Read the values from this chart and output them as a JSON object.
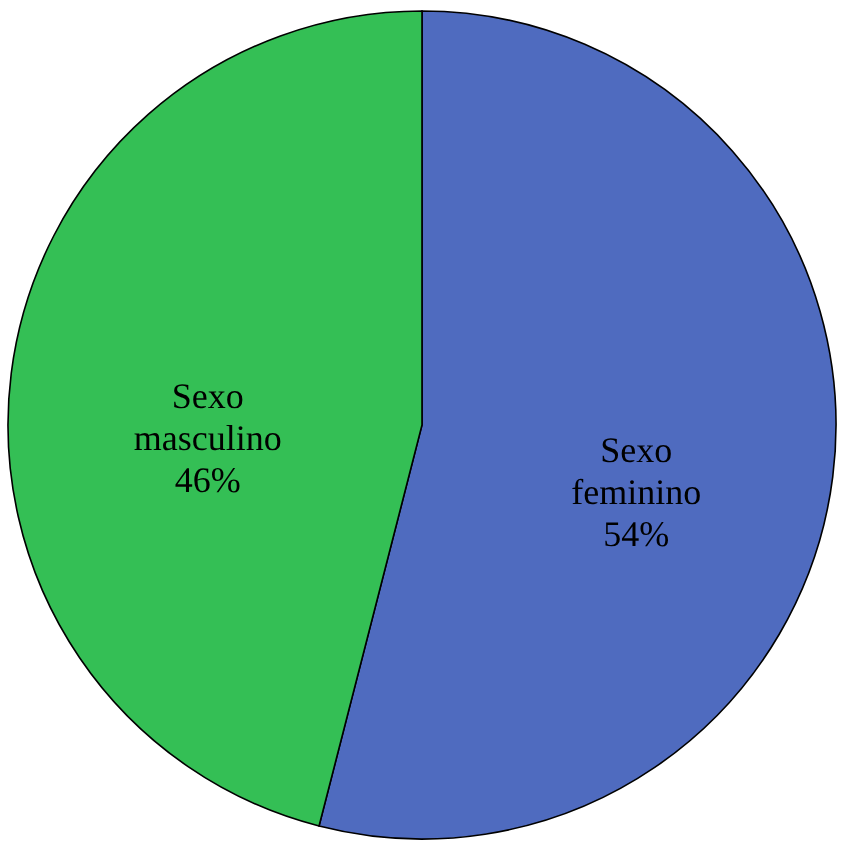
{
  "chart_data": {
    "type": "pie",
    "categories": [
      "Sexo feminino",
      "Sexo masculino"
    ],
    "values": [
      54,
      46
    ],
    "colors": [
      "#4f6bbf",
      "#34bf55"
    ],
    "value_labels": [
      "54%",
      "46%"
    ]
  }
}
